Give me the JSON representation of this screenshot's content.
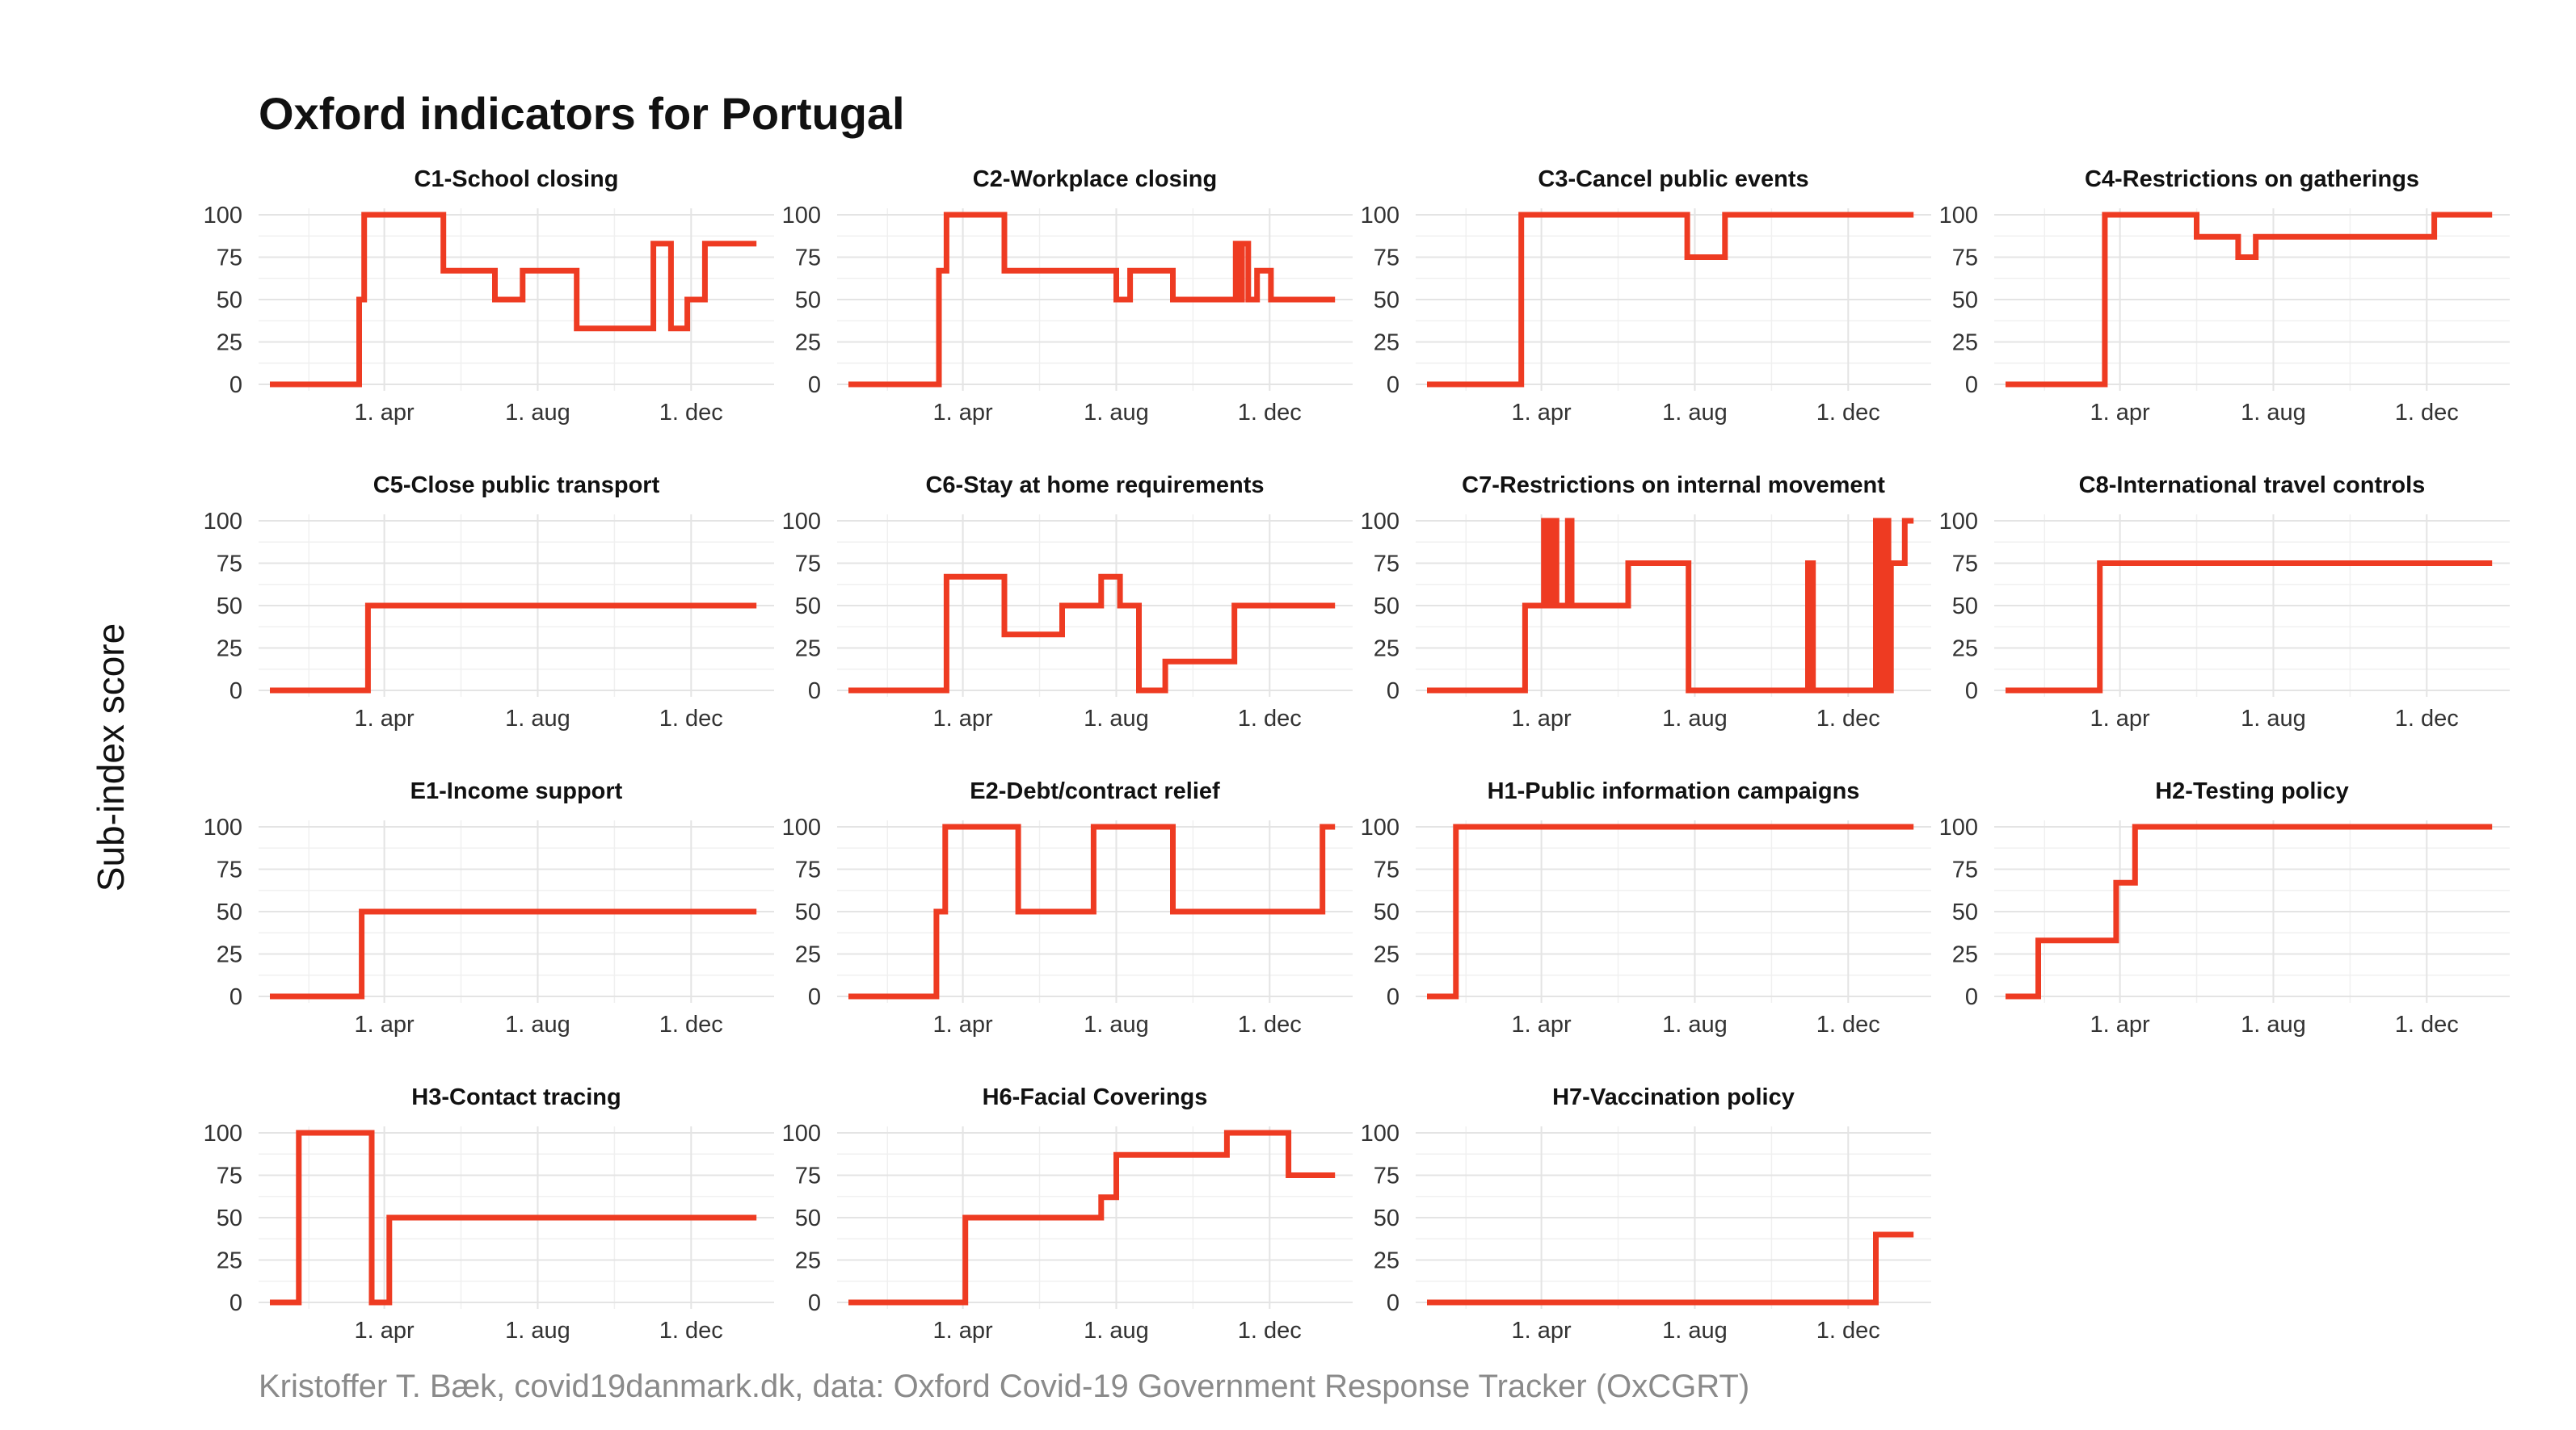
{
  "title": "Oxford indicators for Portugal",
  "ylabel": "Sub-index score",
  "caption": "Kristoffer T. Bæk, covid19danmark.dk, data: Oxford Covid-19 Government Response Tracker (OxCGRT)",
  "colors": {
    "line": "#ee3b22",
    "grid": "#e4e4e4"
  },
  "chart_data": {
    "type": "line",
    "layout": "facet grid, 4 columns x 4 rows",
    "x_unit": "date (2020 to Jan 2021)",
    "xlim": [
      "2020-01-01",
      "2021-01-27"
    ],
    "x_ticks": [
      {
        "date": "2020-04-01",
        "label": "1. apr"
      },
      {
        "date": "2020-08-01",
        "label": "1. aug"
      },
      {
        "date": "2020-12-01",
        "label": "1. dec"
      }
    ],
    "ylim": [
      0,
      100
    ],
    "y_ticks": [
      0,
      25,
      50,
      75,
      100
    ],
    "grid": true,
    "panels": [
      {
        "title": "C1-School closing",
        "points": [
          [
            "2020-01-01",
            0
          ],
          [
            "2020-03-12",
            0
          ],
          [
            "2020-03-12",
            50
          ],
          [
            "2020-03-16",
            50
          ],
          [
            "2020-03-16",
            100
          ],
          [
            "2020-05-18",
            100
          ],
          [
            "2020-05-18",
            67
          ],
          [
            "2020-06-28",
            67
          ],
          [
            "2020-06-28",
            50
          ],
          [
            "2020-07-20",
            50
          ],
          [
            "2020-07-20",
            67
          ],
          [
            "2020-09-01",
            67
          ],
          [
            "2020-09-01",
            33
          ],
          [
            "2020-11-01",
            33
          ],
          [
            "2020-11-01",
            83
          ],
          [
            "2020-11-15",
            83
          ],
          [
            "2020-11-15",
            33
          ],
          [
            "2020-11-28",
            33
          ],
          [
            "2020-11-28",
            50
          ],
          [
            "2020-12-12",
            50
          ],
          [
            "2020-12-12",
            83
          ],
          [
            "2021-01-22",
            83
          ]
        ]
      },
      {
        "title": "C2-Workplace closing",
        "points": [
          [
            "2020-01-01",
            0
          ],
          [
            "2020-03-13",
            0
          ],
          [
            "2020-03-13",
            67
          ],
          [
            "2020-03-19",
            67
          ],
          [
            "2020-03-19",
            100
          ],
          [
            "2020-05-04",
            100
          ],
          [
            "2020-05-04",
            67
          ],
          [
            "2020-08-01",
            67
          ],
          [
            "2020-08-01",
            50
          ],
          [
            "2020-08-12",
            50
          ],
          [
            "2020-08-12",
            67
          ],
          [
            "2020-09-15",
            67
          ],
          [
            "2020-09-15",
            50
          ],
          [
            "2020-11-04",
            50
          ],
          [
            "2020-11-04",
            83
          ],
          [
            "2020-11-08",
            83
          ],
          [
            "2020-11-08",
            50
          ],
          [
            "2020-11-09",
            50
          ],
          [
            "2020-11-09",
            83
          ],
          [
            "2020-11-14",
            83
          ],
          [
            "2020-11-14",
            50
          ],
          [
            "2020-11-21",
            50
          ],
          [
            "2020-11-21",
            67
          ],
          [
            "2020-12-02",
            67
          ],
          [
            "2020-12-02",
            50
          ],
          [
            "2021-01-22",
            50
          ]
        ]
      },
      {
        "title": "C3-Cancel public events",
        "points": [
          [
            "2020-01-01",
            0
          ],
          [
            "2020-03-16",
            0
          ],
          [
            "2020-03-16",
            100
          ],
          [
            "2020-07-26",
            100
          ],
          [
            "2020-07-26",
            75
          ],
          [
            "2020-08-25",
            75
          ],
          [
            "2020-08-25",
            100
          ],
          [
            "2021-01-22",
            100
          ]
        ]
      },
      {
        "title": "C4-Restrictions on gatherings",
        "points": [
          [
            "2020-01-01",
            0
          ],
          [
            "2020-03-20",
            0
          ],
          [
            "2020-03-20",
            100
          ],
          [
            "2020-06-01",
            100
          ],
          [
            "2020-06-01",
            87
          ],
          [
            "2020-07-04",
            87
          ],
          [
            "2020-07-04",
            75
          ],
          [
            "2020-07-18",
            75
          ],
          [
            "2020-07-18",
            87
          ],
          [
            "2020-12-07",
            87
          ],
          [
            "2020-12-07",
            100
          ],
          [
            "2021-01-22",
            100
          ]
        ]
      },
      {
        "title": "C5-Close public transport",
        "points": [
          [
            "2020-01-01",
            0
          ],
          [
            "2020-03-19",
            0
          ],
          [
            "2020-03-19",
            50
          ],
          [
            "2021-01-22",
            50
          ]
        ]
      },
      {
        "title": "C6-Stay at home requirements",
        "points": [
          [
            "2020-01-01",
            0
          ],
          [
            "2020-03-19",
            0
          ],
          [
            "2020-03-19",
            67
          ],
          [
            "2020-05-04",
            67
          ],
          [
            "2020-05-04",
            33
          ],
          [
            "2020-06-19",
            33
          ],
          [
            "2020-06-19",
            50
          ],
          [
            "2020-07-20",
            50
          ],
          [
            "2020-07-20",
            67
          ],
          [
            "2020-08-04",
            67
          ],
          [
            "2020-08-04",
            50
          ],
          [
            "2020-08-19",
            50
          ],
          [
            "2020-08-19",
            0
          ],
          [
            "2020-09-09",
            0
          ],
          [
            "2020-09-09",
            17
          ],
          [
            "2020-11-03",
            17
          ],
          [
            "2020-11-03",
            50
          ],
          [
            "2021-01-22",
            50
          ]
        ]
      },
      {
        "title": "C7-Restrictions on internal movement",
        "points": [
          [
            "2020-01-01",
            0
          ],
          [
            "2020-03-19",
            0
          ],
          [
            "2020-03-19",
            50
          ],
          [
            "2020-04-03",
            50
          ],
          [
            "2020-04-03",
            100
          ],
          [
            "2020-04-06",
            100
          ],
          [
            "2020-04-06",
            50
          ],
          [
            "2020-04-09",
            50
          ],
          [
            "2020-04-09",
            100
          ],
          [
            "2020-04-13",
            100
          ],
          [
            "2020-04-13",
            50
          ],
          [
            "2020-04-22",
            50
          ],
          [
            "2020-04-22",
            100
          ],
          [
            "2020-04-25",
            100
          ],
          [
            "2020-04-25",
            50
          ],
          [
            "2020-06-09",
            50
          ],
          [
            "2020-06-09",
            75
          ],
          [
            "2020-07-27",
            75
          ],
          [
            "2020-07-27",
            0
          ],
          [
            "2020-10-30",
            0
          ],
          [
            "2020-10-30",
            75
          ],
          [
            "2020-11-03",
            75
          ],
          [
            "2020-11-03",
            0
          ],
          [
            "2020-12-23",
            0
          ],
          [
            "2020-12-23",
            100
          ],
          [
            "2020-12-26",
            100
          ],
          [
            "2020-12-26",
            0
          ],
          [
            "2020-12-30",
            0
          ],
          [
            "2020-12-30",
            100
          ],
          [
            "2021-01-02",
            100
          ],
          [
            "2021-01-02",
            0
          ],
          [
            "2021-01-04",
            0
          ],
          [
            "2021-01-04",
            75
          ],
          [
            "2021-01-15",
            75
          ],
          [
            "2021-01-15",
            100
          ],
          [
            "2021-01-22",
            100
          ]
        ]
      },
      {
        "title": "C8-International travel controls",
        "points": [
          [
            "2020-01-01",
            0
          ],
          [
            "2020-03-16",
            0
          ],
          [
            "2020-03-16",
            75
          ],
          [
            "2021-01-22",
            75
          ]
        ]
      },
      {
        "title": "E1-Income support",
        "points": [
          [
            "2020-01-01",
            0
          ],
          [
            "2020-03-14",
            0
          ],
          [
            "2020-03-14",
            50
          ],
          [
            "2021-01-22",
            50
          ]
        ]
      },
      {
        "title": "E2-Debt/contract relief",
        "points": [
          [
            "2020-01-01",
            0
          ],
          [
            "2020-03-11",
            0
          ],
          [
            "2020-03-11",
            50
          ],
          [
            "2020-03-18",
            50
          ],
          [
            "2020-03-18",
            100
          ],
          [
            "2020-05-15",
            100
          ],
          [
            "2020-05-15",
            50
          ],
          [
            "2020-07-14",
            50
          ],
          [
            "2020-07-14",
            100
          ],
          [
            "2020-09-15",
            100
          ],
          [
            "2020-09-15",
            50
          ],
          [
            "2021-01-12",
            50
          ],
          [
            "2021-01-12",
            100
          ],
          [
            "2021-01-22",
            100
          ]
        ]
      },
      {
        "title": "H1-Public information campaigns",
        "points": [
          [
            "2020-01-01",
            0
          ],
          [
            "2020-01-24",
            0
          ],
          [
            "2020-01-24",
            100
          ],
          [
            "2021-01-22",
            100
          ]
        ]
      },
      {
        "title": "H2-Testing policy",
        "points": [
          [
            "2020-01-01",
            0
          ],
          [
            "2020-01-27",
            0
          ],
          [
            "2020-01-27",
            33
          ],
          [
            "2020-03-29",
            33
          ],
          [
            "2020-03-29",
            67
          ],
          [
            "2020-04-13",
            67
          ],
          [
            "2020-04-13",
            100
          ],
          [
            "2021-01-22",
            100
          ]
        ]
      },
      {
        "title": "H3-Contact tracing",
        "points": [
          [
            "2020-01-01",
            0
          ],
          [
            "2020-01-24",
            0
          ],
          [
            "2020-01-24",
            100
          ],
          [
            "2020-03-22",
            100
          ],
          [
            "2020-03-22",
            0
          ],
          [
            "2020-04-05",
            0
          ],
          [
            "2020-04-05",
            50
          ],
          [
            "2021-01-22",
            50
          ]
        ]
      },
      {
        "title": "H6-Facial Coverings",
        "points": [
          [
            "2020-01-01",
            0
          ],
          [
            "2020-04-03",
            0
          ],
          [
            "2020-04-03",
            50
          ],
          [
            "2020-07-20",
            50
          ],
          [
            "2020-07-20",
            62
          ],
          [
            "2020-08-01",
            62
          ],
          [
            "2020-08-01",
            87
          ],
          [
            "2020-10-28",
            87
          ],
          [
            "2020-10-28",
            100
          ],
          [
            "2020-12-16",
            100
          ],
          [
            "2020-12-16",
            75
          ],
          [
            "2021-01-22",
            75
          ]
        ]
      },
      {
        "title": "H7-Vaccination policy",
        "points": [
          [
            "2020-01-01",
            0
          ],
          [
            "2020-12-23",
            0
          ],
          [
            "2020-12-23",
            40
          ],
          [
            "2021-01-22",
            40
          ]
        ]
      }
    ]
  }
}
